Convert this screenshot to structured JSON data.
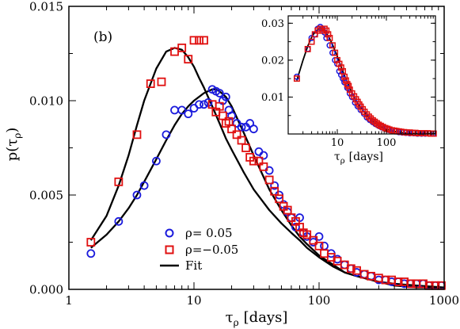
{
  "chart_data": [
    {
      "type": "scatter",
      "panel_label": "(b)",
      "xlabel": "τ",
      "xlabel_sub": "ρ",
      "xlabel_unit": "[days]",
      "ylabel": "p(τ",
      "ylabel_sub": "ρ",
      "ylabel_close": ")",
      "xscale": "log",
      "xlim": [
        1,
        1000
      ],
      "ylim": [
        0,
        0.015
      ],
      "xticks": [
        {
          "value": 1,
          "label": "1"
        },
        {
          "value": 10,
          "label": "10"
        },
        {
          "value": 100,
          "label": "100"
        },
        {
          "value": 1000,
          "label": "1000"
        }
      ],
      "yticks": [
        {
          "value": 0,
          "label": "0.000"
        },
        {
          "value": 0.005,
          "label": "0.005"
        },
        {
          "value": 0.01,
          "label": "0.010"
        },
        {
          "value": 0.015,
          "label": "0.015"
        }
      ],
      "legend": {
        "placement": "lower-center",
        "entries": [
          {
            "label": "ρ=  0.05",
            "marker": "circle",
            "color": "#1a1adc"
          },
          {
            "label": "ρ=−0.05",
            "marker": "square",
            "color": "#e01010"
          },
          {
            "label": "Fit",
            "marker": "line",
            "color": "#000000"
          }
        ]
      },
      "series": [
        {
          "name": "ρ=  0.05",
          "marker": "circle",
          "color": "#1a1adc",
          "x": [
            1.5,
            2.5,
            3.5,
            4,
            5,
            6,
            7,
            8,
            9,
            10,
            11,
            12,
            13,
            14,
            15,
            16,
            17,
            18,
            19,
            20,
            22,
            24,
            26,
            28,
            30,
            33,
            36,
            40,
            44,
            48,
            52,
            56,
            60,
            65,
            70,
            75,
            80,
            90,
            100,
            110,
            125,
            140,
            160,
            180,
            200,
            230,
            260,
            300,
            340,
            380,
            430,
            480,
            540,
            600,
            680,
            760,
            850,
            950
          ],
          "y": [
            0.0019,
            0.0036,
            0.005,
            0.0055,
            0.0068,
            0.0082,
            0.0095,
            0.0095,
            0.0093,
            0.0096,
            0.0098,
            0.0098,
            0.0099,
            0.0106,
            0.0105,
            0.0104,
            0.01,
            0.0102,
            0.0095,
            0.0092,
            0.0088,
            0.0086,
            0.0086,
            0.0088,
            0.0085,
            0.0073,
            0.0071,
            0.0063,
            0.0055,
            0.005,
            0.0045,
            0.0041,
            0.0038,
            0.0033,
            0.0038,
            0.003,
            0.0028,
            0.0025,
            0.0028,
            0.0023,
            0.0019,
            0.0016,
            0.0013,
            0.0011,
            0.0009,
            0.0008,
            0.0007,
            0.0005,
            0.0005,
            0.0004,
            0.0004,
            0.0003,
            0.0003,
            0.0003,
            0.0003,
            0.0002,
            0.0002,
            0.0002
          ]
        },
        {
          "name": "ρ=−0.05",
          "marker": "square",
          "color": "#e01010",
          "x": [
            1.5,
            2.5,
            3.5,
            4.5,
            5.5,
            7,
            8,
            9,
            10,
            11,
            12,
            14,
            15,
            16,
            17,
            18,
            19,
            20,
            22,
            24,
            26,
            28,
            30,
            33,
            36,
            40,
            44,
            48,
            52,
            56,
            60,
            65,
            70,
            75,
            80,
            90,
            100,
            110,
            125,
            140,
            160,
            180,
            200,
            230,
            260,
            300,
            340,
            380,
            430,
            480,
            540,
            600,
            680,
            760,
            850,
            950
          ],
          "y": [
            0.0025,
            0.0057,
            0.0082,
            0.0109,
            0.011,
            0.0126,
            0.0128,
            0.0122,
            0.0132,
            0.0132,
            0.0132,
            0.0098,
            0.0094,
            0.0097,
            0.0092,
            0.0088,
            0.0089,
            0.0085,
            0.0082,
            0.0079,
            0.0075,
            0.007,
            0.0068,
            0.0068,
            0.0065,
            0.0058,
            0.0052,
            0.0048,
            0.0044,
            0.0042,
            0.0038,
            0.0036,
            0.0033,
            0.003,
            0.0029,
            0.0026,
            0.0023,
            0.0019,
            0.0017,
            0.0015,
            0.0013,
            0.0011,
            0.001,
            0.0008,
            0.0007,
            0.0006,
            0.0005,
            0.0005,
            0.0004,
            0.0004,
            0.0003,
            0.0003,
            0.0003,
            0.0002,
            0.0002,
            0.0002
          ]
        },
        {
          "name": "Fit",
          "marker": "line",
          "color": "#000000",
          "x": [
            1.5,
            2,
            2.5,
            3,
            3.5,
            4,
            5,
            6,
            7,
            8,
            9,
            10,
            11,
            12,
            14,
            16,
            18,
            20,
            25,
            30,
            40,
            50,
            60,
            70,
            80,
            100,
            130,
            160,
            200,
            300,
            400,
            600,
            1000
          ],
          "y": [
            0.0026,
            0.0039,
            0.0055,
            0.0071,
            0.0087,
            0.01,
            0.0117,
            0.0126,
            0.0128,
            0.0127,
            0.0123,
            0.0118,
            0.0112,
            0.0107,
            0.0097,
            0.0088,
            0.008,
            0.0074,
            0.0062,
            0.0053,
            0.0042,
            0.0035,
            0.003,
            0.0026,
            0.0022,
            0.0017,
            0.0012,
            0.0009,
            0.0007,
            0.0004,
            0.0003,
            0.0002,
            0.0001
          ]
        },
        {
          "name": "Fit",
          "marker": "line",
          "color": "#000000",
          "x": [
            1.5,
            2,
            2.5,
            3,
            3.5,
            4,
            5,
            6,
            7,
            8,
            9,
            10,
            12,
            14,
            15,
            16,
            18,
            20,
            25,
            30,
            40,
            50,
            60,
            70,
            80,
            100,
            130,
            160,
            200,
            300,
            400,
            600,
            1000
          ],
          "y": [
            0.0022,
            0.0029,
            0.0036,
            0.0043,
            0.005,
            0.0057,
            0.0069,
            0.0079,
            0.0087,
            0.0093,
            0.0097,
            0.01,
            0.0104,
            0.0106,
            0.0106,
            0.0105,
            0.0102,
            0.0097,
            0.0083,
            0.0071,
            0.0053,
            0.0042,
            0.0034,
            0.0028,
            0.0024,
            0.0018,
            0.0013,
            0.0009,
            0.0007,
            0.0004,
            0.0002,
            0.0001,
            0.0001
          ]
        }
      ]
    },
    {
      "type": "scatter",
      "placement": "inset-top-right",
      "xlabel": "τ",
      "xlabel_sub": "ρ",
      "xlabel_unit": "[days]",
      "xscale": "log",
      "xlim": [
        1,
        1000
      ],
      "ylim": [
        0,
        0.032
      ],
      "xticks": [
        {
          "value": 10,
          "label": "10"
        },
        {
          "value": 100,
          "label": "100"
        }
      ],
      "yticks": [
        {
          "value": 0.01,
          "label": "0.01"
        },
        {
          "value": 0.02,
          "label": "0.02"
        },
        {
          "value": 0.03,
          "label": "0.03"
        }
      ],
      "series": [
        {
          "name": "ρ=  0.05",
          "marker": "circle",
          "color": "#1a1adc",
          "x": [
            1.5,
            2.5,
            3,
            3.5,
            4,
            4.5,
            5,
            5.5,
            6,
            7,
            8,
            9,
            10,
            11,
            12,
            13,
            14,
            16,
            18,
            20,
            23,
            26,
            30,
            35,
            40,
            46,
            53,
            60,
            70,
            80,
            95,
            110,
            130,
            150,
            180,
            210,
            250,
            300,
            360,
            430,
            520,
            620,
            750,
            900
          ],
          "y": [
            0.0155,
            0.023,
            0.026,
            0.027,
            0.0285,
            0.029,
            0.0285,
            0.0275,
            0.026,
            0.024,
            0.022,
            0.02,
            0.019,
            0.017,
            0.016,
            0.015,
            0.014,
            0.0125,
            0.011,
            0.01,
            0.0085,
            0.0075,
            0.0065,
            0.0055,
            0.0045,
            0.0038,
            0.0032,
            0.0027,
            0.0022,
            0.0018,
            0.0014,
            0.0011,
            0.0009,
            0.0007,
            0.0005,
            0.0004,
            0.0003,
            0.0002,
            0.0002,
            0.0001,
            0.0001,
            0.0001,
            0.0001,
            0.0001
          ]
        },
        {
          "name": "ρ=−0.05",
          "marker": "square",
          "color": "#e01010",
          "x": [
            1.5,
            2.5,
            3,
            3.5,
            4,
            4.5,
            5,
            5.5,
            6,
            6.5,
            7,
            8,
            9,
            10,
            11,
            12,
            13,
            14,
            15,
            16,
            17,
            18,
            20,
            22,
            24,
            26,
            28,
            30,
            33,
            36,
            40,
            44,
            48,
            53,
            58,
            64,
            70,
            77,
            85,
            95,
            105,
            115,
            130,
            145,
            160,
            180,
            200,
            230,
            260,
            300,
            340,
            390,
            450,
            520,
            600,
            700,
            800,
            920
          ],
          "y": [
            0.015,
            0.023,
            0.025,
            0.027,
            0.028,
            0.0285,
            0.028,
            0.0285,
            0.028,
            0.027,
            0.026,
            0.024,
            0.022,
            0.02,
            0.019,
            0.018,
            0.017,
            0.0155,
            0.0145,
            0.0135,
            0.013,
            0.012,
            0.011,
            0.0102,
            0.0094,
            0.0087,
            0.008,
            0.0074,
            0.0067,
            0.006,
            0.0053,
            0.0047,
            0.0042,
            0.0037,
            0.0033,
            0.0029,
            0.0025,
            0.0022,
            0.0019,
            0.0016,
            0.0014,
            0.0012,
            0.001,
            0.0009,
            0.0008,
            0.0007,
            0.0006,
            0.0005,
            0.0004,
            0.0004,
            0.0003,
            0.0003,
            0.0002,
            0.0002,
            0.0002,
            0.0002,
            0.0001,
            0.0001
          ]
        },
        {
          "name": "Fit",
          "marker": "line",
          "color": "#000000",
          "x": [
            1.5,
            2,
            2.5,
            3,
            3.5,
            4,
            4.5,
            5,
            6,
            7,
            8,
            10,
            12,
            15,
            20,
            25,
            30,
            40,
            50,
            70,
            100,
            150,
            200,
            300,
            500,
            1000
          ],
          "y": [
            0.0145,
            0.02,
            0.0238,
            0.0262,
            0.0276,
            0.0283,
            0.0285,
            0.0283,
            0.0273,
            0.0258,
            0.0242,
            0.021,
            0.0182,
            0.0148,
            0.0111,
            0.0087,
            0.0071,
            0.005,
            0.0037,
            0.0023,
            0.0013,
            0.0007,
            0.0004,
            0.0002,
            0.0001,
            0.0001
          ]
        }
      ]
    }
  ]
}
